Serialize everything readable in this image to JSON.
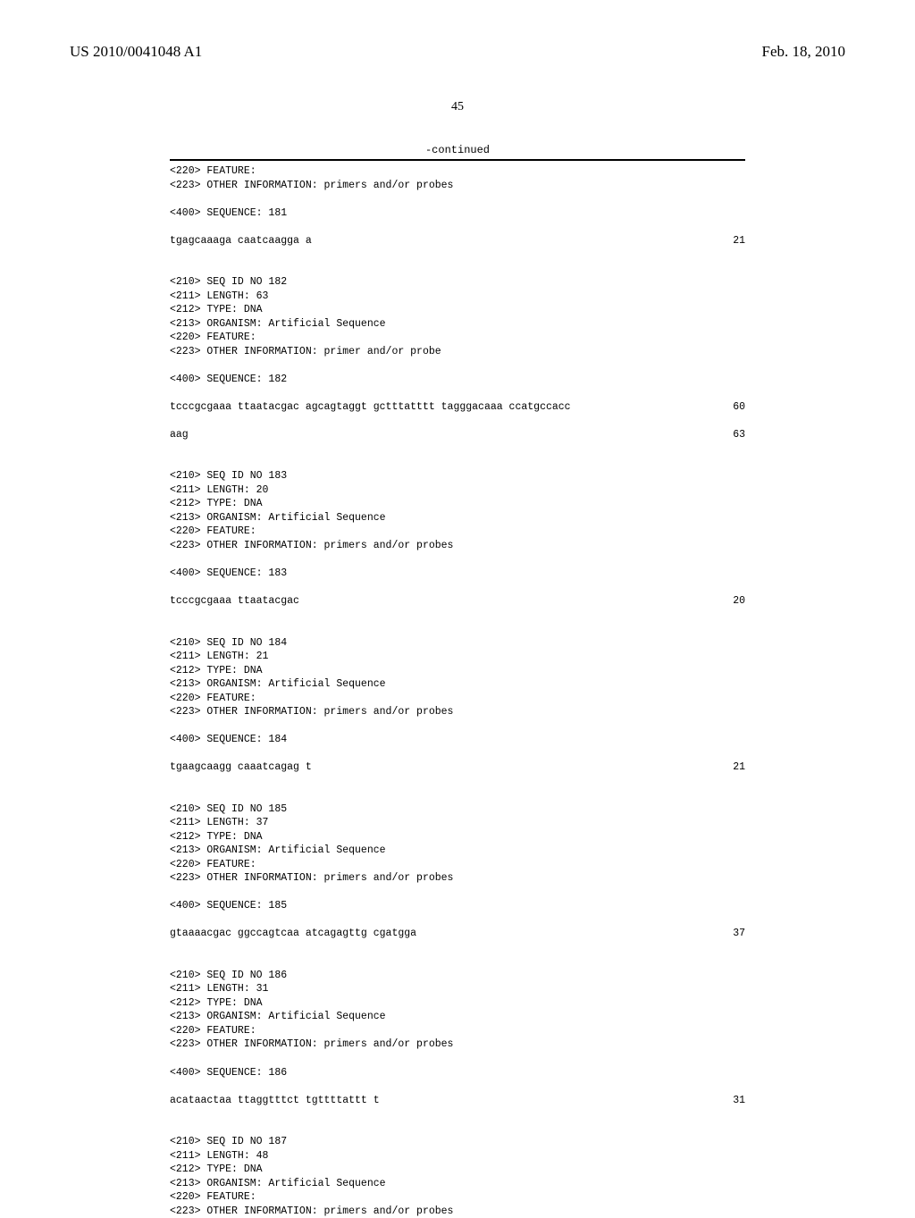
{
  "header": {
    "pub_number": "US 2010/0041048 A1",
    "pub_date": "Feb. 18, 2010"
  },
  "page_number": "45",
  "continued_label": "-continued",
  "entries": [
    {
      "meta": [
        "<220> FEATURE:",
        "<223> OTHER INFORMATION: primers and/or probes"
      ],
      "seq_label": "<400> SEQUENCE: 181",
      "seq_lines": [
        {
          "text": "tgagcaaaga caatcaagga a",
          "num": "21"
        }
      ]
    },
    {
      "meta": [
        "<210> SEQ ID NO 182",
        "<211> LENGTH: 63",
        "<212> TYPE: DNA",
        "<213> ORGANISM: Artificial Sequence",
        "<220> FEATURE:",
        "<223> OTHER INFORMATION: primer and/or probe"
      ],
      "seq_label": "<400> SEQUENCE: 182",
      "seq_lines": [
        {
          "text": "tcccgcgaaa ttaatacgac agcagtaggt gctttatttt tagggacaaa ccatgccacc",
          "num": "60"
        },
        {
          "text": "aag",
          "num": "63"
        }
      ]
    },
    {
      "meta": [
        "<210> SEQ ID NO 183",
        "<211> LENGTH: 20",
        "<212> TYPE: DNA",
        "<213> ORGANISM: Artificial Sequence",
        "<220> FEATURE:",
        "<223> OTHER INFORMATION: primers and/or probes"
      ],
      "seq_label": "<400> SEQUENCE: 183",
      "seq_lines": [
        {
          "text": "tcccgcgaaa ttaatacgac",
          "num": "20"
        }
      ]
    },
    {
      "meta": [
        "<210> SEQ ID NO 184",
        "<211> LENGTH: 21",
        "<212> TYPE: DNA",
        "<213> ORGANISM: Artificial Sequence",
        "<220> FEATURE:",
        "<223> OTHER INFORMATION: primers and/or probes"
      ],
      "seq_label": "<400> SEQUENCE: 184",
      "seq_lines": [
        {
          "text": "tgaagcaagg caaatcagag t",
          "num": "21"
        }
      ]
    },
    {
      "meta": [
        "<210> SEQ ID NO 185",
        "<211> LENGTH: 37",
        "<212> TYPE: DNA",
        "<213> ORGANISM: Artificial Sequence",
        "<220> FEATURE:",
        "<223> OTHER INFORMATION: primers and/or probes"
      ],
      "seq_label": "<400> SEQUENCE: 185",
      "seq_lines": [
        {
          "text": "gtaaaacgac ggccagtcaa atcagagttg cgatgga",
          "num": "37"
        }
      ]
    },
    {
      "meta": [
        "<210> SEQ ID NO 186",
        "<211> LENGTH: 31",
        "<212> TYPE: DNA",
        "<213> ORGANISM: Artificial Sequence",
        "<220> FEATURE:",
        "<223> OTHER INFORMATION: primers and/or probes"
      ],
      "seq_label": "<400> SEQUENCE: 186",
      "seq_lines": [
        {
          "text": "acataactaa ttaggtttct tgttttattt t",
          "num": "31"
        }
      ]
    },
    {
      "meta": [
        "<210> SEQ ID NO 187",
        "<211> LENGTH: 48",
        "<212> TYPE: DNA",
        "<213> ORGANISM: Artificial Sequence",
        "<220> FEATURE:",
        "<223> OTHER INFORMATION: primers and/or probes"
      ],
      "seq_label": null,
      "seq_lines": []
    }
  ]
}
